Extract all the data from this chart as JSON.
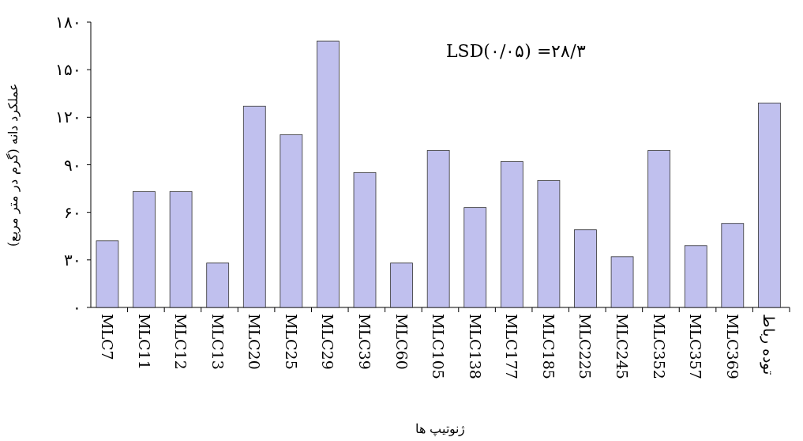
{
  "chart_data": {
    "type": "bar",
    "ylabel": "عملکرد دانه (گرم در متر مربع)",
    "xlabel": "ژنوتیپ ها",
    "annotations": [
      "LSD(۰/۰۵) =۲۸/۳"
    ],
    "categories": [
      "MLC7",
      "MLC11",
      "MLC12",
      "MLC13",
      "MLC20",
      "MLC25",
      "MLC29",
      "MLC39",
      "MLC60",
      "MLC105",
      "MLC138",
      "MLC177",
      "MLC185",
      "MLC225",
      "MLC245",
      "MLC352",
      "MLC357",
      "MLC369",
      "توده رباط"
    ],
    "values": [
      42,
      73,
      73,
      28,
      127,
      109,
      168,
      85,
      28,
      99,
      63,
      92,
      80,
      49,
      32,
      99,
      39,
      53,
      129
    ],
    "color": "#c0c0ee",
    "ylim": [
      0,
      180
    ],
    "yticks": [
      {
        "value": 0,
        "label": "۰"
      },
      {
        "value": 30,
        "label": "۳۰"
      },
      {
        "value": 60,
        "label": "۶۰"
      },
      {
        "value": 90,
        "label": "۹۰"
      },
      {
        "value": 120,
        "label": "۱۲۰"
      },
      {
        "value": 150,
        "label": "۱۵۰"
      },
      {
        "value": 180,
        "label": "۱۸۰"
      }
    ],
    "grid": false
  }
}
